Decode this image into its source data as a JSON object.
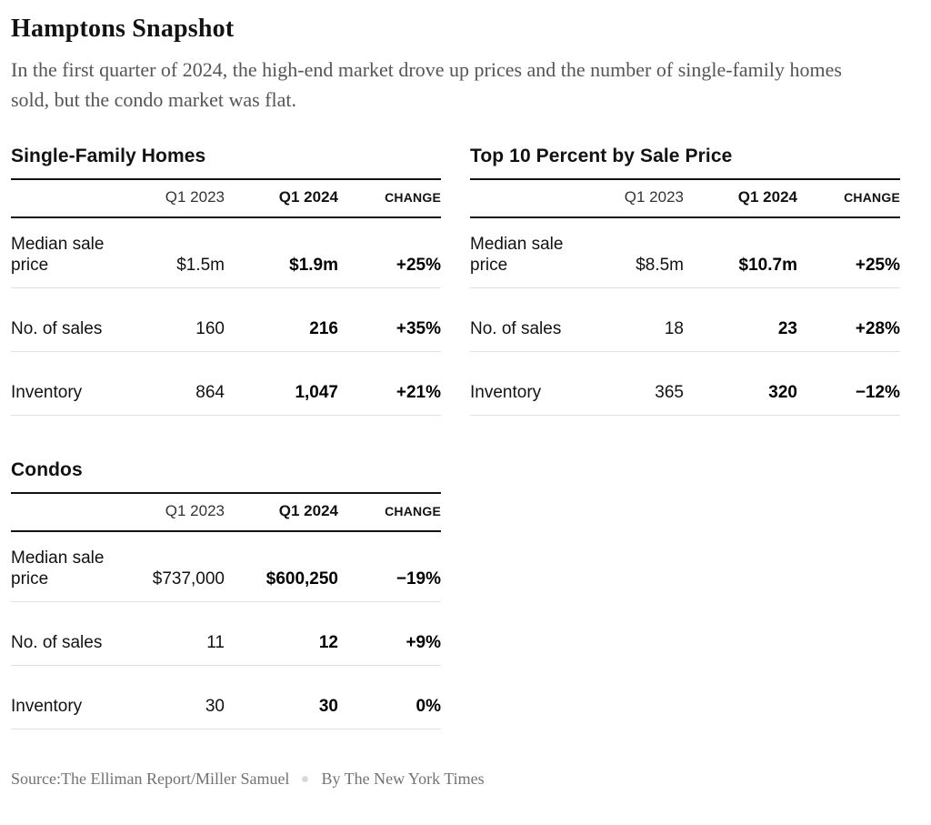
{
  "header": {
    "title": "Hamptons Snapshot",
    "subtitle": "In the first quarter of 2024, the high-end market drove up prices and the number of single-family homes sold, but the condo market was flat."
  },
  "tables": [
    {
      "title": "Single-Family Homes",
      "columns": [
        "Q1 2023",
        "Q1 2024",
        "CHANGE"
      ],
      "rows": [
        {
          "label": "Median sale price",
          "q1_2023": "$1.5m",
          "q1_2024": "$1.9m",
          "change": "+25%"
        },
        {
          "label": "No. of sales",
          "q1_2023": "160",
          "q1_2024": "216",
          "change": "+35%"
        },
        {
          "label": "Inventory",
          "q1_2023": "864",
          "q1_2024": "1,047",
          "change": "+21%"
        }
      ]
    },
    {
      "title": "Top 10 Percent by Sale Price",
      "columns": [
        "Q1 2023",
        "Q1 2024",
        "CHANGE"
      ],
      "rows": [
        {
          "label": "Median sale price",
          "q1_2023": "$8.5m",
          "q1_2024": "$10.7m",
          "change": "+25%"
        },
        {
          "label": "No. of sales",
          "q1_2023": "18",
          "q1_2024": "23",
          "change": "+28%"
        },
        {
          "label": "Inventory",
          "q1_2023": "365",
          "q1_2024": "320",
          "change": "−12%"
        }
      ]
    },
    {
      "title": "Condos",
      "columns": [
        "Q1 2023",
        "Q1 2024",
        "CHANGE"
      ],
      "rows": [
        {
          "label": "Median sale price",
          "q1_2023": "$737,000",
          "q1_2024": "$600,250",
          "change": "−19%"
        },
        {
          "label": "No. of sales",
          "q1_2023": "11",
          "q1_2024": "12",
          "change": "+9%"
        },
        {
          "label": "Inventory",
          "q1_2023": "30",
          "q1_2024": "30",
          "change": "0%"
        }
      ]
    }
  ],
  "footer": {
    "source": "Source:The Elliman Report/Miller Samuel",
    "byline": "By The New York Times"
  },
  "colors": {
    "text_black": "#121212",
    "header_rule": "#121212",
    "row_separator": "#e1e1e1",
    "subtitle_gray": "#555555",
    "footer_gray": "#727272",
    "dot_gray": "#d9d9d9"
  },
  "chart_data": [
    {
      "type": "table",
      "title": "Single-Family Homes",
      "columns": [
        "",
        "Q1 2023",
        "Q1 2024",
        "CHANGE"
      ],
      "rows": [
        [
          "Median sale price",
          "$1.5m",
          "$1.9m",
          "+25%"
        ],
        [
          "No. of sales",
          160,
          216,
          "+35%"
        ],
        [
          "Inventory",
          864,
          1047,
          "+21%"
        ]
      ]
    },
    {
      "type": "table",
      "title": "Top 10 Percent by Sale Price",
      "columns": [
        "",
        "Q1 2023",
        "Q1 2024",
        "CHANGE"
      ],
      "rows": [
        [
          "Median sale price",
          "$8.5m",
          "$10.7m",
          "+25%"
        ],
        [
          "No. of sales",
          18,
          23,
          "+28%"
        ],
        [
          "Inventory",
          365,
          320,
          "−12%"
        ]
      ]
    },
    {
      "type": "table",
      "title": "Condos",
      "columns": [
        "",
        "Q1 2023",
        "Q1 2024",
        "CHANGE"
      ],
      "rows": [
        [
          "Median sale price",
          "$737,000",
          "$600,250",
          "−19%"
        ],
        [
          "No. of sales",
          11,
          12,
          "+9%"
        ],
        [
          "Inventory",
          30,
          30,
          "0%"
        ]
      ]
    }
  ]
}
